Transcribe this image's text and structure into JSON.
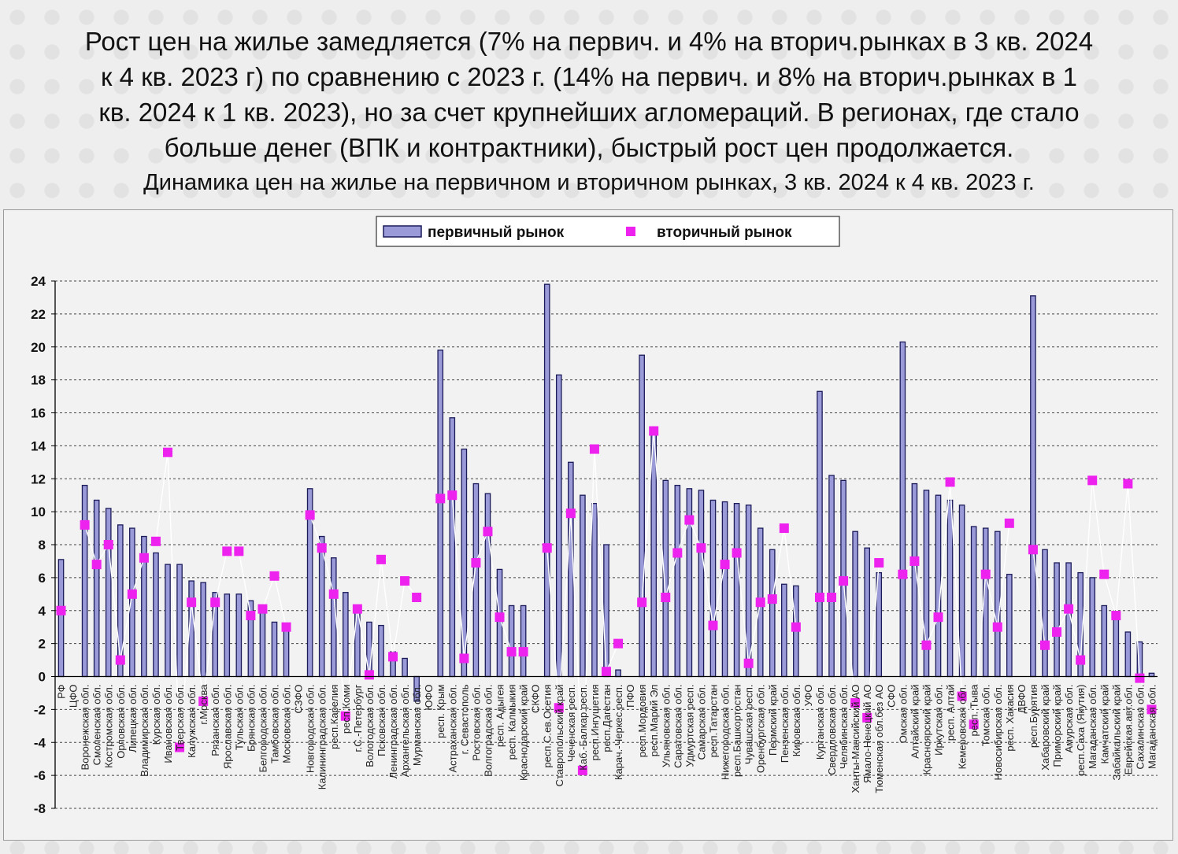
{
  "header": {
    "headline_lines": [
      "Рост цен на жилье замедляется (7% на первич. и 4% на вторич.рынках в 3 кв. 2024",
      "к 4 кв. 2023 г) по сравнению с 2023 г. (14% на первич. и 8% на вторич.рынках в 1",
      "кв. 2024 к 1 кв. 2023), но за счет крупнейших агломераций. В регионах, где стало",
      "больше денег (ВПК и контрактники), быстрый рост цен продолжается."
    ],
    "subtitle": "Динамика цен на жилье на первичном и вторичном рынках, 3 кв. 2024 к 4 кв. 2023 г."
  },
  "colors": {
    "bar_fill": "#9a9ad8",
    "bar_stroke": "#1b1b5a",
    "marker": "#ee22ee",
    "line": "#ffffff",
    "grid": "#444444"
  },
  "chart_data": {
    "type": "bar",
    "title": "",
    "xlabel": "",
    "ylabel": "",
    "ylim": [
      -8,
      24
    ],
    "yticks": [
      24,
      22,
      20,
      18,
      16,
      14,
      12,
      10,
      8,
      6,
      4,
      2,
      0,
      -2,
      -4,
      -6,
      -8
    ],
    "grid": true,
    "legend_position": "top-center",
    "categories": [
      "РФ",
      "ЦФО",
      "Воронежская обл.",
      "Смоленская обл.",
      "Костромская обл.",
      "Орловская обл.",
      "Липецкая обл.",
      "Владимирская обл.",
      "Курская обл.",
      "Ивановская обл.",
      "Тверская обл.",
      "Калужская обл.",
      "г.Москва",
      "Рязанская обл.",
      "Ярославская обл.",
      "Тульская обл.",
      "Брянская обл.",
      "Белгородская обл.",
      "Тамбовская обл.",
      "Московская обл.",
      "СЗФО",
      "Новгородская обл.",
      "Калининградская обл.",
      "респ.Карелия",
      "респ.Коми",
      "г.С.-Петербург",
      "Вологодская обл.",
      "Псковская обл.",
      "Ленинградская обл.",
      "Архангельская обл.",
      "Мурманская обл.",
      "ЮФО",
      "респ. Крым",
      "Астраханская обл.",
      "г. Севастополь",
      "Ростовская обл.",
      "Волгоградская обл.",
      "респ. Адыгея",
      "респ. Калмыкия",
      "Краснодарский край",
      "СКФО",
      "респ.С.ев.Осетия",
      "Ставропольский край",
      "Чеченская респ.",
      "Каб.-Балкар.респ.",
      "респ.Ингушетия",
      "респ.Дагестан",
      "Карач.-Черкес.респ.",
      "ПФО",
      "респ.Мордовия",
      "респ.Марий Эл",
      "Ульяновская обл.",
      "Саратовская обл.",
      "Удмуртская респ.",
      "Самарская обл.",
      "респ.Татарстан",
      "Нижегородская обл.",
      "респ.Башкортостан",
      "Чувашская респ.",
      "Оренбургская обл.",
      "Пермский край",
      "Пензенская обл.",
      "Кировская обл.",
      "УФО",
      "Курганская обл.",
      "Свердловская обл.",
      "Челябинская обл.",
      "Ханты-Мансийский АО",
      "Ямало-Ненецкий АО",
      "Тюменская обл.без АО",
      "СФО",
      "Омская обл.",
      "Алтайский край",
      "Красноярский край",
      "Иркутская обл.",
      "респ. Алтай",
      "Кемеровская обл.",
      "респ. Тыва",
      "Томская обл.",
      "Новосибирская обл.",
      "респ. Хакасия",
      "ДВФО",
      "респ.Бурятия",
      "Хабаровский край",
      "Приморский край",
      "Амурская обл.",
      "респ.Саха (Якутия)",
      "Магаданская обл.",
      "Камчатский край",
      "Забайкальский край",
      "Еврейская.авт.обл.",
      "Сахалинская обл.",
      "Магаданская обл."
    ],
    "series": [
      {
        "name": "первичный рынок",
        "kind": "bar",
        "values": [
          7.1,
          null,
          11.6,
          10.7,
          10.2,
          9.2,
          9.0,
          8.5,
          7.5,
          6.8,
          6.8,
          5.8,
          5.7,
          5.1,
          5.0,
          5.0,
          4.6,
          4.0,
          3.3,
          3.1,
          null,
          11.4,
          8.5,
          7.2,
          5.1,
          4.0,
          3.3,
          3.1,
          1.5,
          1.1,
          -1.5,
          null,
          19.8,
          15.7,
          13.8,
          11.7,
          11.1,
          6.5,
          4.3,
          4.3,
          null,
          23.8,
          18.3,
          13.0,
          11.0,
          10.5,
          8.0,
          0.4,
          null,
          19.5,
          14.8,
          11.9,
          11.6,
          11.4,
          11.3,
          10.7,
          10.6,
          10.5,
          10.4,
          9.0,
          7.7,
          5.6,
          5.5,
          null,
          17.3,
          12.2,
          11.9,
          8.8,
          7.8,
          6.3,
          null,
          20.3,
          11.7,
          11.3,
          11.0,
          10.7,
          10.4,
          9.1,
          9.0,
          8.8,
          6.2,
          null,
          23.1,
          7.7,
          6.9,
          6.9,
          6.3,
          6.0,
          4.3,
          3.9,
          2.7,
          2.1,
          0.2
        ]
      },
      {
        "name": "вторичный рынок",
        "kind": "scatter",
        "values": [
          4.0,
          null,
          9.2,
          6.8,
          8.0,
          1.0,
          5.0,
          7.2,
          8.2,
          13.6,
          -4.3,
          4.5,
          -1.5,
          4.5,
          7.6,
          7.6,
          3.7,
          4.1,
          6.1,
          3.0,
          null,
          9.8,
          7.8,
          5.0,
          -2.4,
          4.1,
          0.1,
          7.1,
          1.2,
          5.8,
          4.8,
          null,
          10.8,
          11.0,
          1.1,
          6.9,
          8.8,
          3.6,
          1.5,
          1.5,
          null,
          7.8,
          -1.9,
          9.9,
          -5.7,
          13.8,
          0.3,
          2.0,
          null,
          4.5,
          14.9,
          4.8,
          7.5,
          9.5,
          7.8,
          3.1,
          6.8,
          7.5,
          0.8,
          4.5,
          4.7,
          9.0,
          3.0,
          null,
          4.8,
          4.8,
          5.8,
          -1.6,
          -2.5,
          6.9,
          null,
          6.2,
          7.0,
          1.9,
          3.6,
          11.8,
          -1.2,
          -2.9,
          6.2,
          3.0,
          9.3,
          null,
          7.7,
          1.9,
          2.7,
          4.1,
          1.0,
          11.9,
          6.2,
          3.7,
          11.7,
          -0.1,
          -2.0
        ]
      }
    ]
  },
  "legend": {
    "primary": "первичный рынок",
    "secondary": "вторичный рынок"
  }
}
